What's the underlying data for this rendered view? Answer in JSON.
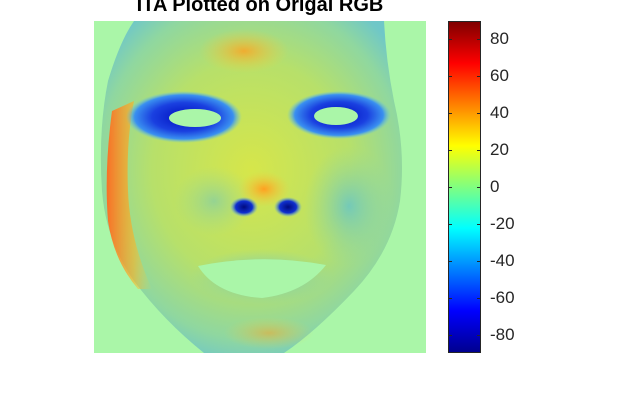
{
  "chart_data": {
    "type": "heatmap",
    "title": "ITA Plotted on Origal RGB",
    "colormap": "jet",
    "clim": [
      -90,
      90
    ],
    "background_color": "#aaf6a8",
    "colorbar": {
      "ticks": [
        80,
        60,
        40,
        20,
        0,
        -20,
        -40,
        -60,
        -80
      ],
      "tick_labels": [
        "80",
        "60",
        "40",
        "20",
        "0",
        "-20",
        "-40",
        "-60",
        "-80"
      ]
    },
    "regions": [
      {
        "name": "face",
        "value": 12
      },
      {
        "name": "forehead-center",
        "value": 22
      },
      {
        "name": "left-cheek-edge",
        "value": 58
      },
      {
        "name": "right-cheek",
        "value": 8
      },
      {
        "name": "nose",
        "value": 25
      },
      {
        "name": "eye-sockets",
        "value": -62
      },
      {
        "name": "nostrils",
        "value": -72
      },
      {
        "name": "lips",
        "value": -15
      },
      {
        "name": "chin",
        "value": 14
      }
    ]
  }
}
